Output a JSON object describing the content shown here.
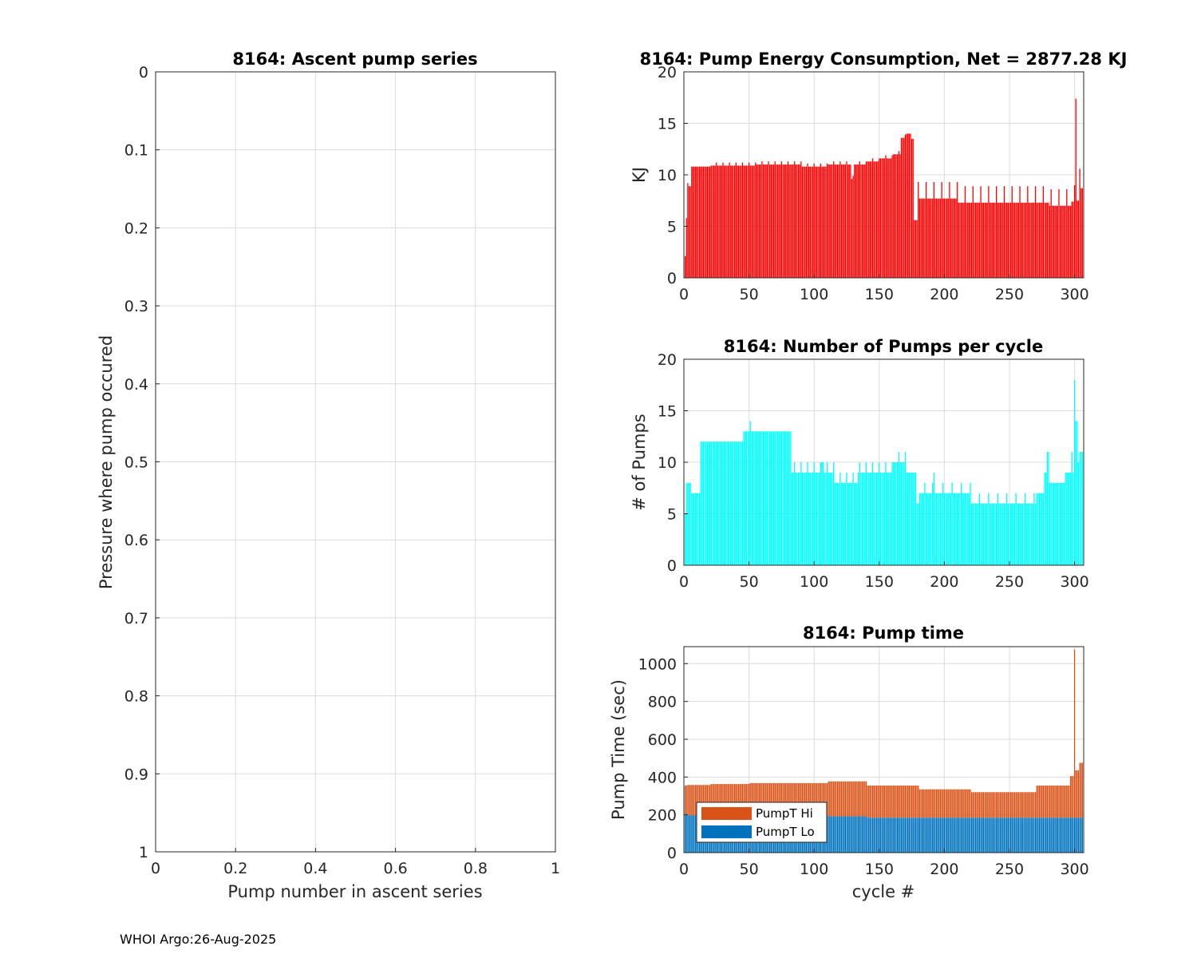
{
  "chart_data": [
    {
      "type": "line",
      "title": "8164: Ascent pump series",
      "xlabel": "Pump number in ascent series",
      "ylabel": "Pressure where pump occured",
      "xlim": [
        0,
        1
      ],
      "ylim": [
        0,
        1
      ],
      "y_reversed": true,
      "xticks": [
        "0",
        "0.2",
        "0.4",
        "0.6",
        "0.8",
        "1"
      ],
      "yticks": [
        "0",
        "0.1",
        "0.2",
        "0.3",
        "0.4",
        "0.5",
        "0.6",
        "0.7",
        "0.8",
        "0.9",
        "1"
      ],
      "grid": true,
      "series": []
    },
    {
      "type": "bar",
      "title": "8164: Pump Energy Consumption,  Net = 2877.28 KJ",
      "xlabel": "",
      "ylabel": "KJ",
      "xlim": [
        0,
        307
      ],
      "ylim": [
        0,
        20
      ],
      "xticks": [
        "0",
        "50",
        "100",
        "150",
        "200",
        "250",
        "300"
      ],
      "yticks": [
        "0",
        "5",
        "10",
        "15",
        "20"
      ],
      "color": "#ff0000",
      "grid": true,
      "segments": [
        {
          "from": 1,
          "to": 1,
          "value": 2.1
        },
        {
          "from": 2,
          "to": 2,
          "value": 5.8
        },
        {
          "from": 3,
          "to": 3,
          "value": 9.2
        },
        {
          "from": 4,
          "to": 5,
          "value": 8.9
        },
        {
          "from": 6,
          "to": 20,
          "value": 10.8
        },
        {
          "from": 21,
          "to": 55,
          "value": 10.9
        },
        {
          "from": 56,
          "to": 90,
          "value": 11.0
        },
        {
          "from": 91,
          "to": 110,
          "value": 10.8
        },
        {
          "from": 111,
          "to": 128,
          "value": 11.0
        },
        {
          "from": 129,
          "to": 130,
          "value": 9.6
        },
        {
          "from": 131,
          "to": 140,
          "value": 11.0
        },
        {
          "from": 141,
          "to": 150,
          "value": 11.3
        },
        {
          "from": 151,
          "to": 160,
          "value": 11.6
        },
        {
          "from": 161,
          "to": 166,
          "value": 12.0
        },
        {
          "from": 167,
          "to": 170,
          "value": 13.6
        },
        {
          "from": 171,
          "to": 174,
          "value": 14.0
        },
        {
          "from": 175,
          "to": 176,
          "value": 13.5
        },
        {
          "from": 177,
          "to": 179,
          "value": 5.6
        },
        {
          "from": 180,
          "to": 210,
          "value": 7.7
        },
        {
          "from": 211,
          "to": 280,
          "value": 7.3
        },
        {
          "from": 281,
          "to": 297,
          "value": 7.0
        },
        {
          "from": 298,
          "to": 300,
          "value": 7.4
        },
        {
          "from": 301,
          "to": 301,
          "value": 17.4
        },
        {
          "from": 302,
          "to": 303,
          "value": 7.5
        },
        {
          "from": 304,
          "to": 304,
          "value": 10.6
        },
        {
          "from": 305,
          "to": 306,
          "value": 8.7
        }
      ],
      "spikes": [
        {
          "every": 5,
          "start": 25,
          "end": 170,
          "add": 0.3
        },
        {
          "every": 6,
          "start": 180,
          "end": 300,
          "add": 1.6
        }
      ]
    },
    {
      "type": "bar",
      "title": "8164: Number of Pumps per cycle",
      "xlabel": "",
      "ylabel": "# of Pumps",
      "xlim": [
        0,
        307
      ],
      "ylim": [
        0,
        20
      ],
      "xticks": [
        "0",
        "50",
        "100",
        "150",
        "200",
        "250",
        "300"
      ],
      "yticks": [
        "0",
        "5",
        "10",
        "15",
        "20"
      ],
      "color": "#00ffff",
      "grid": true,
      "segments": [
        {
          "from": 1,
          "to": 1,
          "value": 5
        },
        {
          "from": 2,
          "to": 2,
          "value": 8
        },
        {
          "from": 3,
          "to": 5,
          "value": 8
        },
        {
          "from": 6,
          "to": 12,
          "value": 7
        },
        {
          "from": 13,
          "to": 16,
          "value": 12
        },
        {
          "from": 17,
          "to": 20,
          "value": 12
        },
        {
          "from": 21,
          "to": 45,
          "value": 12
        },
        {
          "from": 46,
          "to": 50,
          "value": 13
        },
        {
          "from": 51,
          "to": 51,
          "value": 14
        },
        {
          "from": 52,
          "to": 60,
          "value": 13
        },
        {
          "from": 61,
          "to": 82,
          "value": 13
        },
        {
          "from": 83,
          "to": 105,
          "value": 9
        },
        {
          "from": 106,
          "to": 107,
          "value": 10
        },
        {
          "from": 108,
          "to": 115,
          "value": 9
        },
        {
          "from": 116,
          "to": 133,
          "value": 8
        },
        {
          "from": 134,
          "to": 150,
          "value": 9
        },
        {
          "from": 151,
          "to": 160,
          "value": 9
        },
        {
          "from": 161,
          "to": 170,
          "value": 10
        },
        {
          "from": 171,
          "to": 178,
          "value": 9
        },
        {
          "from": 179,
          "to": 180,
          "value": 6
        },
        {
          "from": 181,
          "to": 190,
          "value": 7
        },
        {
          "from": 191,
          "to": 192,
          "value": 8
        },
        {
          "from": 193,
          "to": 220,
          "value": 7
        },
        {
          "from": 221,
          "to": 270,
          "value": 6
        },
        {
          "from": 271,
          "to": 276,
          "value": 7
        },
        {
          "from": 277,
          "to": 278,
          "value": 9
        },
        {
          "from": 279,
          "to": 280,
          "value": 11
        },
        {
          "from": 281,
          "to": 292,
          "value": 8
        },
        {
          "from": 293,
          "to": 297,
          "value": 9
        },
        {
          "from": 298,
          "to": 298,
          "value": 11
        },
        {
          "from": 299,
          "to": 299,
          "value": 9
        },
        {
          "from": 300,
          "to": 300,
          "value": 18
        },
        {
          "from": 301,
          "to": 302,
          "value": 14
        },
        {
          "from": 303,
          "to": 303,
          "value": 10
        },
        {
          "from": 304,
          "to": 306,
          "value": 11
        }
      ],
      "spikes": [
        {
          "every": 5,
          "start": 85,
          "end": 170,
          "add": 1
        },
        {
          "every": 7,
          "start": 185,
          "end": 270,
          "add": 1
        }
      ]
    },
    {
      "type": "bar",
      "stacked": true,
      "title": "8164: Pump time",
      "xlabel": "cycle #",
      "ylabel": "Pump Time (sec)",
      "xlim": [
        0,
        307
      ],
      "ylim": [
        0,
        1090
      ],
      "xticks": [
        "0",
        "50",
        "100",
        "150",
        "200",
        "250",
        "300"
      ],
      "ytick_values": [
        0,
        200,
        400,
        600,
        800,
        1000
      ],
      "yticks": [
        "0",
        "200",
        "400",
        "600",
        "800",
        "1000"
      ],
      "grid": true,
      "legend": "bottom-left",
      "series": [
        {
          "name": "PumpT Hi",
          "color": "#d95319",
          "segments": [
            {
              "from": 1,
              "to": 2,
              "value": 150
            },
            {
              "from": 3,
              "to": 20,
              "value": 160
            },
            {
              "from": 21,
              "to": 50,
              "value": 165
            },
            {
              "from": 51,
              "to": 110,
              "value": 170
            },
            {
              "from": 111,
              "to": 140,
              "value": 185
            },
            {
              "from": 141,
              "to": 180,
              "value": 170
            },
            {
              "from": 181,
              "to": 220,
              "value": 150
            },
            {
              "from": 221,
              "to": 270,
              "value": 135
            },
            {
              "from": 271,
              "to": 296,
              "value": 170
            },
            {
              "from": 297,
              "to": 299,
              "value": 220
            },
            {
              "from": 300,
              "to": 300,
              "value": 890
            },
            {
              "from": 301,
              "to": 303,
              "value": 250
            },
            {
              "from": 304,
              "to": 306,
              "value": 290
            }
          ]
        },
        {
          "name": "PumpT Lo",
          "color": "#0072bd",
          "segments": [
            {
              "from": 1,
              "to": 2,
              "value": 205
            },
            {
              "from": 3,
              "to": 110,
              "value": 198
            },
            {
              "from": 111,
              "to": 140,
              "value": 192
            },
            {
              "from": 141,
              "to": 306,
              "value": 185
            }
          ]
        }
      ]
    }
  ],
  "footer": "WHOI Argo:26-Aug-2025"
}
